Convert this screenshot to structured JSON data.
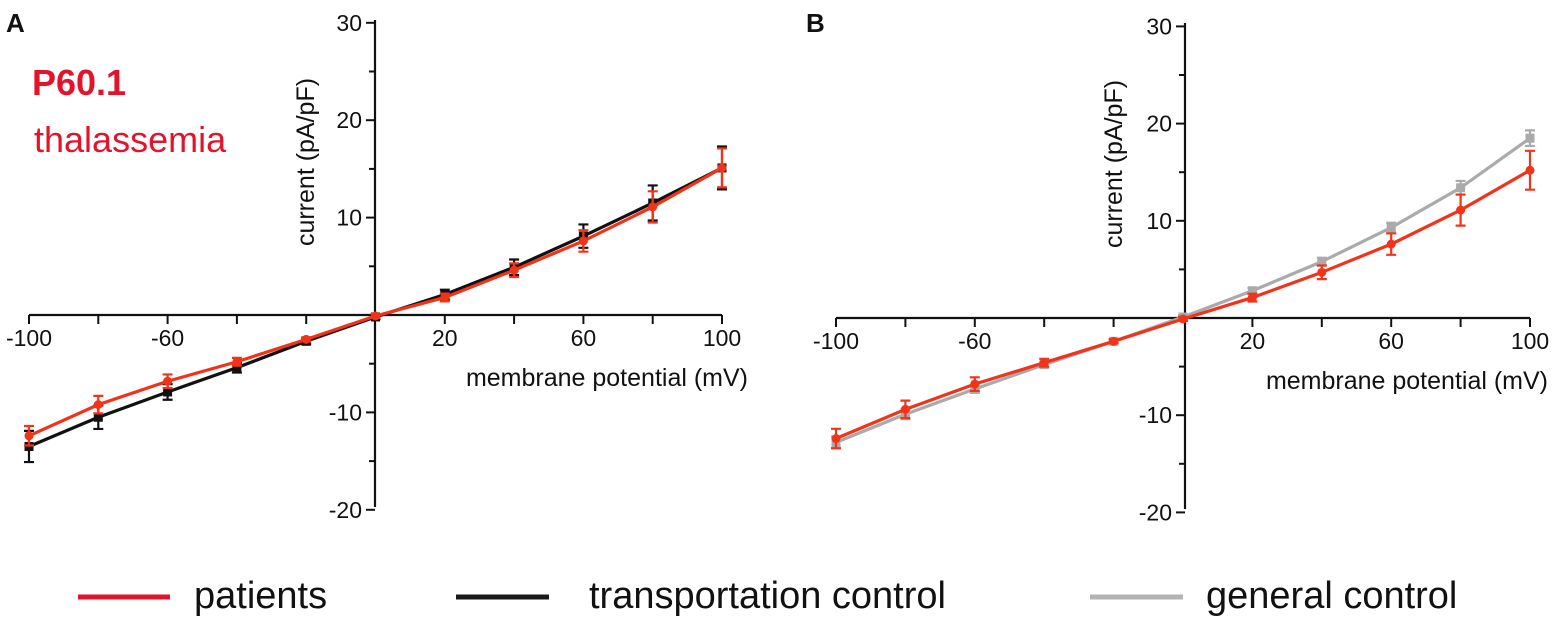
{
  "panels": {
    "a": {
      "letter": "A",
      "annotation_id": "P60.1",
      "annotation_condition": "thalassemia"
    },
    "b": {
      "letter": "B"
    }
  },
  "legend": {
    "patients": {
      "label": "patients",
      "color": "#e2132b"
    },
    "transportation_control": {
      "label": "transportation control",
      "color": "#1a1a1a"
    },
    "general_control": {
      "label": "general control",
      "color": "#b3b3b3"
    }
  },
  "chart_data": [
    {
      "type": "line",
      "panel": "A",
      "xlabel": "membrane potential (mV)",
      "ylabel": "current (pA/pF)",
      "xlim": [
        -100,
        100
      ],
      "ylim": [
        -20,
        30
      ],
      "x_ticks_labeled": [
        "-100",
        "-60",
        "20",
        "60",
        "100"
      ],
      "y_ticks_labeled": [
        "30",
        "20",
        "10",
        "-10",
        "-20"
      ],
      "x": [
        -100,
        -80,
        -60,
        -40,
        -20,
        0,
        20,
        40,
        60,
        80,
        100
      ],
      "series": [
        {
          "name": "transportation control",
          "color": "#111111",
          "values": [
            -13.5,
            -10.5,
            -7.9,
            -5.4,
            -2.7,
            -0.2,
            2.1,
            4.9,
            8.1,
            11.5,
            15.1
          ],
          "errors": [
            1.6,
            1.2,
            0.8,
            0.5,
            0.3,
            0.2,
            0.5,
            0.8,
            1.2,
            1.8,
            2.2
          ]
        },
        {
          "name": "patients",
          "color": "#f0341a",
          "values": [
            -12.4,
            -9.2,
            -6.8,
            -4.8,
            -2.5,
            -0.1,
            1.8,
            4.6,
            7.6,
            11.1,
            15.1
          ],
          "errors": [
            1.0,
            0.9,
            0.7,
            0.4,
            0.2,
            0.2,
            0.4,
            0.7,
            1.1,
            1.6,
            2.0
          ]
        }
      ]
    },
    {
      "type": "line",
      "panel": "B",
      "xlabel": "membrane potential (mV)",
      "ylabel": "current (pA/pF)",
      "xlim": [
        -100,
        100
      ],
      "ylim": [
        -20,
        30
      ],
      "x_ticks_labeled": [
        "-100",
        "-60",
        "20",
        "60",
        "100"
      ],
      "y_ticks_labeled": [
        "30",
        "20",
        "10",
        "-10",
        "-20"
      ],
      "x": [
        -100,
        -80,
        -60,
        -40,
        -20,
        0,
        20,
        40,
        60,
        80,
        100
      ],
      "series": [
        {
          "name": "general control",
          "color": "#aaaaaa",
          "values": [
            -12.8,
            -9.9,
            -7.3,
            -4.8,
            -2.4,
            0.1,
            2.8,
            5.8,
            9.3,
            13.4,
            18.5
          ],
          "errors": [
            0.6,
            0.5,
            0.4,
            0.3,
            0.2,
            0.2,
            0.3,
            0.4,
            0.5,
            0.7,
            0.8
          ]
        },
        {
          "name": "patients",
          "color": "#f0341a",
          "values": [
            -12.4,
            -9.4,
            -6.8,
            -4.6,
            -2.4,
            -0.1,
            2.1,
            4.7,
            7.6,
            11.1,
            15.2
          ],
          "errors": [
            1.0,
            0.9,
            0.7,
            0.4,
            0.2,
            0.2,
            0.4,
            0.7,
            1.1,
            1.6,
            2.0
          ]
        }
      ]
    }
  ]
}
